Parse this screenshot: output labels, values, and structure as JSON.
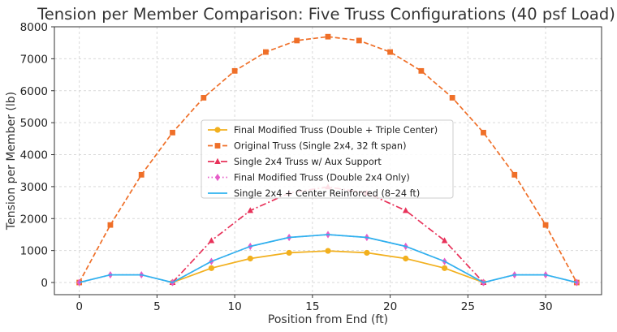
{
  "chart_data": {
    "type": "line",
    "title": "Tension per Member Comparison: Five Truss Configurations (40 psf Load)",
    "xlabel": "Position from End (ft)",
    "ylabel": "Tension per Member (lb)",
    "xlim": [
      -1.6,
      33.6
    ],
    "ylim": [
      -380,
      8000
    ],
    "xticks": [
      0,
      5,
      10,
      15,
      20,
      25,
      30
    ],
    "yticks": [
      0,
      1000,
      2000,
      3000,
      4000,
      5000,
      6000,
      7000,
      8000
    ],
    "grid": true,
    "legend_position": "center",
    "series": [
      {
        "name": "Final Modified Truss (Double + Triple Center)",
        "color": "#f2b01e",
        "line_style": "solid",
        "marker": "circle",
        "x": [
          6,
          8.5,
          11,
          13.5,
          16,
          18.5,
          21,
          23.5,
          26
        ],
        "y": [
          0,
          450,
          750,
          930,
          990,
          930,
          750,
          450,
          0
        ]
      },
      {
        "name": "Original Truss (Single 2x4, 32 ft span)",
        "color": "#ef6f28",
        "line_style": "dashed",
        "marker": "square",
        "x": [
          0,
          2,
          4,
          6,
          8,
          10,
          12,
          14,
          16,
          18,
          20,
          22,
          24,
          26,
          28,
          30,
          32
        ],
        "y": [
          0,
          1800,
          3370,
          4690,
          5780,
          6620,
          7210,
          7570,
          7690,
          7570,
          7210,
          6620,
          5780,
          4690,
          3370,
          1800,
          0
        ]
      },
      {
        "name": "Single 2x4 Truss w/ Aux Support",
        "color": "#e8325a",
        "line_style": "dashdot",
        "marker": "triangle",
        "x": [
          6,
          8.5,
          11,
          13.5,
          16,
          18.5,
          21,
          23.5,
          26
        ],
        "y": [
          0,
          1310,
          2250,
          2800,
          2990,
          2800,
          2250,
          1310,
          0
        ]
      },
      {
        "name": "Final Modified Truss (Double 2x4 Only)",
        "color": "#e65cc8",
        "line_style": "dotted",
        "marker": "diamond",
        "x": [
          0,
          2,
          4,
          6,
          8.5,
          11,
          13.5,
          16,
          18.5,
          21,
          23.5,
          26,
          28,
          30,
          32
        ],
        "y": [
          0,
          240,
          240,
          0,
          660,
          1130,
          1410,
          1500,
          1410,
          1130,
          660,
          0,
          240,
          240,
          0
        ]
      },
      {
        "name": "Single 2x4 + Center Reinforced (8–24 ft)",
        "color": "#2eb2ef",
        "line_style": "solid",
        "marker": "none",
        "x": [
          0,
          2,
          4,
          6,
          8.5,
          11,
          13.5,
          16,
          18.5,
          21,
          23.5,
          26,
          28,
          30,
          32
        ],
        "y": [
          0,
          240,
          240,
          0,
          660,
          1130,
          1410,
          1500,
          1410,
          1130,
          660,
          0,
          240,
          240,
          0
        ]
      }
    ]
  }
}
